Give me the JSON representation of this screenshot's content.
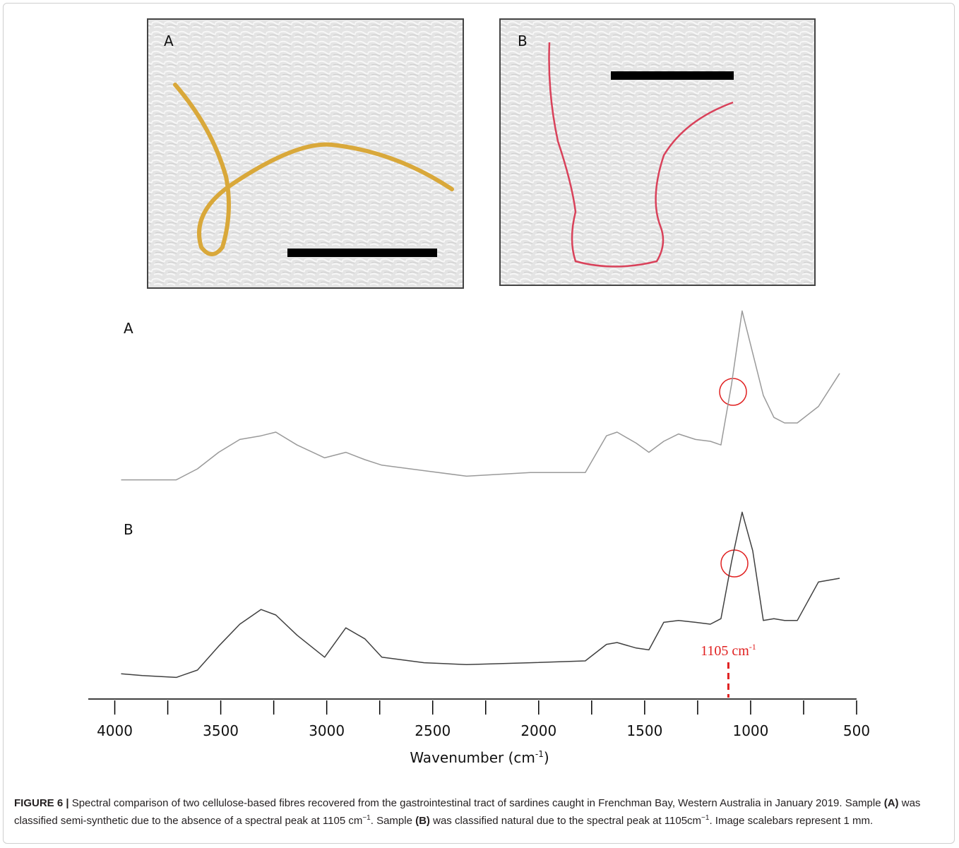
{
  "photos": [
    {
      "label": "A"
    },
    {
      "label": "B"
    }
  ],
  "chart_data": {
    "type": "line",
    "x": [
      3970,
      3870,
      3710,
      3610,
      3510,
      3410,
      3310,
      3240,
      3140,
      3010,
      2910,
      2820,
      2740,
      2540,
      2340,
      2040,
      1780,
      1680,
      1630,
      1540,
      1480,
      1410,
      1340,
      1260,
      1190,
      1140,
      1090,
      1040,
      990,
      940,
      890,
      840,
      780,
      680,
      580
    ],
    "series": [
      {
        "name": "A",
        "color": "#9a9a9a",
        "values": [
          4,
          4,
          4,
          10,
          19,
          26,
          28,
          30,
          23,
          16,
          19,
          15,
          12,
          9,
          6,
          8,
          8,
          28,
          30,
          24,
          19,
          25,
          29,
          26,
          25,
          23,
          56,
          96,
          73,
          50,
          38,
          35,
          35,
          44,
          62
        ]
      },
      {
        "name": "B",
        "color": "#404040",
        "values": [
          8,
          7,
          6,
          10,
          23,
          35,
          43,
          40,
          29,
          17,
          33,
          27,
          17,
          14,
          13,
          14,
          15,
          24,
          25,
          22,
          21,
          36,
          37,
          36,
          35,
          38,
          69,
          96,
          75,
          37,
          38,
          37,
          37,
          58,
          60
        ]
      }
    ],
    "xlim": [
      4125,
      500
    ],
    "ylim": [
      0,
      100
    ],
    "xticks": [
      4000,
      3500,
      3000,
      2500,
      2000,
      1500,
      1000,
      500
    ],
    "xminor_ticks": [
      3750,
      3250,
      2750,
      2250,
      1750,
      1250,
      750
    ],
    "xlabel": [
      "Wavenumber (cm",
      "-1",
      ")"
    ],
    "annotation": {
      "x": 1105,
      "text": [
        "1105 cm",
        "-1"
      ],
      "color": "#e02020"
    }
  },
  "caption": [
    {
      "text": "FIGURE 6 |",
      "bold": true
    },
    {
      "text": " Spectral comparison of two cellulose-based fibres recovered from the gastrointestinal tract of sardines caught in Frenchman Bay, Western Australia in January 2019. Sample "
    },
    {
      "text": "(A)",
      "bold": true
    },
    {
      "text": " was classified semi-synthetic due to the absence of a spectral peak at 1105 cm"
    },
    {
      "text": "−1",
      "sup": true
    },
    {
      "text": ". Sample "
    },
    {
      "text": "(B)",
      "bold": true
    },
    {
      "text": " was classified natural due to the spectral peak at 1105cm"
    },
    {
      "text": "−1",
      "sup": true
    },
    {
      "text": ". Image scalebars represent 1 mm."
    }
  ]
}
